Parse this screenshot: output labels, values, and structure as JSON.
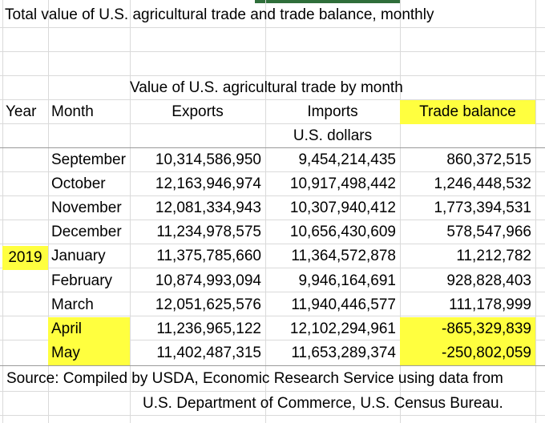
{
  "sheet": {
    "title": "Total value of U.S. agricultural trade and trade balance, monthly",
    "subtitle": "Value of U.S. agricultural trade by month",
    "headers": {
      "year": "Year",
      "month": "Month",
      "exports": "Exports",
      "imports": "Imports",
      "balance": "Trade balance"
    },
    "units": "U.S. dollars",
    "year_value": "2019",
    "rows": [
      {
        "month": "September",
        "exports": "10,314,586,950",
        "imports": "9,454,214,435",
        "balance": "860,372,515"
      },
      {
        "month": "October",
        "exports": "12,163,946,974",
        "imports": "10,917,498,442",
        "balance": "1,246,448,532"
      },
      {
        "month": "November",
        "exports": "12,081,334,943",
        "imports": "10,307,940,412",
        "balance": "1,773,394,531"
      },
      {
        "month": "December",
        "exports": "11,234,978,575",
        "imports": "10,656,430,609",
        "balance": "578,547,966"
      },
      {
        "month": "January",
        "exports": "11,375,785,660",
        "imports": "11,364,572,878",
        "balance": "11,212,782"
      },
      {
        "month": "February",
        "exports": "10,874,993,094",
        "imports": "9,946,164,691",
        "balance": "928,828,403"
      },
      {
        "month": "March",
        "exports": "12,051,625,576",
        "imports": "11,940,446,577",
        "balance": "111,178,999"
      },
      {
        "month": "April",
        "exports": "11,236,965,122",
        "imports": "12,102,294,961",
        "balance": "-865,329,839"
      },
      {
        "month": "May",
        "exports": "11,402,487,315",
        "imports": "11,653,289,374",
        "balance": "-250,802,059"
      }
    ],
    "source_line1": "Source:  Compiled by USDA, Economic Research Service using data from",
    "source_line2": "U.S. Department of Commerce, U.S. Census Bureau.",
    "highlight_color": "#ffff3f"
  }
}
